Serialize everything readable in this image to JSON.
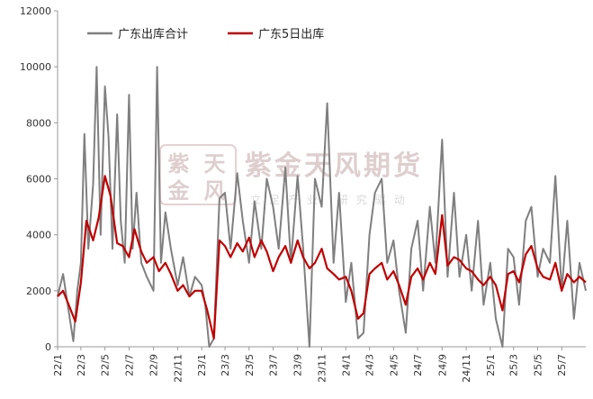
{
  "watermark": {
    "logo_chars": [
      "紫",
      "天",
      "金",
      "风"
    ],
    "name": "紫金天风期货",
    "slogan": "立足产业 研究驱动"
  },
  "chart_data": {
    "type": "line",
    "title": "",
    "xlabel": "",
    "ylabel": "",
    "ylim": [
      0,
      12000
    ],
    "yticks": [
      0,
      2000,
      4000,
      6000,
      8000,
      10000,
      12000
    ],
    "grid": false,
    "legend": {
      "placement": "top-left"
    },
    "x_start": "2022-01-01",
    "x_end": "2025-08-31",
    "xtick_labels": [
      "22/1",
      "22/3",
      "22/5",
      "22/7",
      "22/9",
      "22/11",
      "23/1",
      "23/3",
      "23/5",
      "23/7",
      "23/9",
      "23/11",
      "24/1",
      "24/3",
      "24/5",
      "24/7",
      "24/9",
      "24/11",
      "25/1",
      "25/3",
      "25/5",
      "25/7"
    ],
    "series": [
      {
        "name": "广东出库合计",
        "color": "#7f7f7f",
        "points": [
          [
            "2022-01-01",
            1800
          ],
          [
            "2022-01-15",
            2600
          ],
          [
            "2022-02-01",
            1000
          ],
          [
            "2022-02-10",
            200
          ],
          [
            "2022-02-20",
            2000
          ],
          [
            "2022-03-01",
            3000
          ],
          [
            "2022-03-10",
            7600
          ],
          [
            "2022-03-20",
            3500
          ],
          [
            "2022-04-01",
            5800
          ],
          [
            "2022-04-10",
            10000
          ],
          [
            "2022-04-20",
            4000
          ],
          [
            "2022-05-01",
            9300
          ],
          [
            "2022-05-10",
            7500
          ],
          [
            "2022-05-20",
            3500
          ],
          [
            "2022-06-01",
            8300
          ],
          [
            "2022-06-10",
            4500
          ],
          [
            "2022-06-20",
            3000
          ],
          [
            "2022-07-01",
            9000
          ],
          [
            "2022-07-10",
            3500
          ],
          [
            "2022-07-20",
            5500
          ],
          [
            "2022-08-01",
            3000
          ],
          [
            "2022-08-15",
            2500
          ],
          [
            "2022-09-01",
            2000
          ],
          [
            "2022-09-10",
            10000
          ],
          [
            "2022-09-20",
            3000
          ],
          [
            "2022-10-01",
            4800
          ],
          [
            "2022-10-15",
            3500
          ],
          [
            "2022-11-01",
            2200
          ],
          [
            "2022-11-15",
            3200
          ],
          [
            "2022-12-01",
            1800
          ],
          [
            "2022-12-15",
            2500
          ],
          [
            "2023-01-01",
            2200
          ],
          [
            "2023-01-10",
            1500
          ],
          [
            "2023-01-20",
            0
          ],
          [
            "2023-02-01",
            300
          ],
          [
            "2023-02-15",
            5300
          ],
          [
            "2023-03-01",
            5500
          ],
          [
            "2023-03-15",
            3500
          ],
          [
            "2023-04-01",
            6200
          ],
          [
            "2023-04-15",
            4500
          ],
          [
            "2023-05-01",
            3000
          ],
          [
            "2023-05-15",
            5200
          ],
          [
            "2023-06-01",
            3500
          ],
          [
            "2023-06-15",
            6000
          ],
          [
            "2023-07-01",
            5000
          ],
          [
            "2023-07-15",
            3500
          ],
          [
            "2023-08-01",
            6400
          ],
          [
            "2023-08-15",
            3000
          ],
          [
            "2023-09-01",
            6100
          ],
          [
            "2023-09-15",
            3500
          ],
          [
            "2023-10-01",
            0
          ],
          [
            "2023-10-15",
            6000
          ],
          [
            "2023-11-01",
            5000
          ],
          [
            "2023-11-15",
            8700
          ],
          [
            "2023-12-01",
            3000
          ],
          [
            "2023-12-15",
            5500
          ],
          [
            "2024-01-01",
            1600
          ],
          [
            "2024-01-15",
            3000
          ],
          [
            "2024-02-01",
            300
          ],
          [
            "2024-02-15",
            500
          ],
          [
            "2024-03-01",
            4000
          ],
          [
            "2024-03-15",
            5500
          ],
          [
            "2024-04-01",
            6000
          ],
          [
            "2024-04-15",
            3000
          ],
          [
            "2024-05-01",
            3800
          ],
          [
            "2024-05-15",
            2000
          ],
          [
            "2024-06-01",
            500
          ],
          [
            "2024-06-15",
            3500
          ],
          [
            "2024-07-01",
            4500
          ],
          [
            "2024-07-15",
            2000
          ],
          [
            "2024-08-01",
            5000
          ],
          [
            "2024-08-15",
            3000
          ],
          [
            "2024-09-01",
            7400
          ],
          [
            "2024-09-15",
            2500
          ],
          [
            "2024-10-01",
            5500
          ],
          [
            "2024-10-15",
            2500
          ],
          [
            "2024-11-01",
            4000
          ],
          [
            "2024-11-15",
            2000
          ],
          [
            "2024-12-01",
            4500
          ],
          [
            "2024-12-15",
            1500
          ],
          [
            "2025-01-01",
            3000
          ],
          [
            "2025-01-15",
            1000
          ],
          [
            "2025-02-01",
            0
          ],
          [
            "2025-02-15",
            3500
          ],
          [
            "2025-03-01",
            3200
          ],
          [
            "2025-03-15",
            1500
          ],
          [
            "2025-04-01",
            4500
          ],
          [
            "2025-04-15",
            5000
          ],
          [
            "2025-05-01",
            2500
          ],
          [
            "2025-05-15",
            3500
          ],
          [
            "2025-06-01",
            3000
          ],
          [
            "2025-06-15",
            6100
          ],
          [
            "2025-07-01",
            2000
          ],
          [
            "2025-07-15",
            4500
          ],
          [
            "2025-08-01",
            1000
          ],
          [
            "2025-08-15",
            3000
          ],
          [
            "2025-08-31",
            2000
          ]
        ]
      },
      {
        "name": "广东5日出库",
        "color": "#c00000",
        "points": [
          [
            "2022-01-01",
            1800
          ],
          [
            "2022-01-15",
            2000
          ],
          [
            "2022-02-01",
            1400
          ],
          [
            "2022-02-15",
            900
          ],
          [
            "2022-03-01",
            2300
          ],
          [
            "2022-03-15",
            4500
          ],
          [
            "2022-04-01",
            3800
          ],
          [
            "2022-04-15",
            4600
          ],
          [
            "2022-05-01",
            6100
          ],
          [
            "2022-05-15",
            5400
          ],
          [
            "2022-06-01",
            3700
          ],
          [
            "2022-06-15",
            3600
          ],
          [
            "2022-07-01",
            3200
          ],
          [
            "2022-07-15",
            4200
          ],
          [
            "2022-08-01",
            3400
          ],
          [
            "2022-08-15",
            3000
          ],
          [
            "2022-09-01",
            3200
          ],
          [
            "2022-09-15",
            2700
          ],
          [
            "2022-10-01",
            3000
          ],
          [
            "2022-10-15",
            2600
          ],
          [
            "2022-11-01",
            2000
          ],
          [
            "2022-11-15",
            2200
          ],
          [
            "2022-12-01",
            1800
          ],
          [
            "2022-12-15",
            2000
          ],
          [
            "2023-01-01",
            2000
          ],
          [
            "2023-01-15",
            1300
          ],
          [
            "2023-02-01",
            300
          ],
          [
            "2023-02-15",
            3800
          ],
          [
            "2023-03-01",
            3600
          ],
          [
            "2023-03-15",
            3200
          ],
          [
            "2023-04-01",
            3700
          ],
          [
            "2023-04-15",
            3400
          ],
          [
            "2023-05-01",
            3900
          ],
          [
            "2023-05-15",
            3200
          ],
          [
            "2023-06-01",
            3800
          ],
          [
            "2023-06-15",
            3400
          ],
          [
            "2023-07-01",
            2700
          ],
          [
            "2023-07-15",
            3200
          ],
          [
            "2023-08-01",
            3600
          ],
          [
            "2023-08-15",
            3000
          ],
          [
            "2023-09-01",
            3800
          ],
          [
            "2023-09-15",
            3200
          ],
          [
            "2023-10-01",
            2800
          ],
          [
            "2023-10-15",
            3000
          ],
          [
            "2023-11-01",
            3500
          ],
          [
            "2023-11-15",
            2800
          ],
          [
            "2023-12-01",
            2600
          ],
          [
            "2023-12-15",
            2400
          ],
          [
            "2024-01-01",
            2500
          ],
          [
            "2024-01-15",
            2000
          ],
          [
            "2024-02-01",
            1000
          ],
          [
            "2024-02-15",
            1200
          ],
          [
            "2024-03-01",
            2600
          ],
          [
            "2024-03-15",
            2800
          ],
          [
            "2024-04-01",
            3000
          ],
          [
            "2024-04-15",
            2400
          ],
          [
            "2024-05-01",
            2700
          ],
          [
            "2024-05-15",
            2200
          ],
          [
            "2024-06-01",
            1500
          ],
          [
            "2024-06-15",
            2500
          ],
          [
            "2024-07-01",
            2800
          ],
          [
            "2024-07-15",
            2400
          ],
          [
            "2024-08-01",
            3000
          ],
          [
            "2024-08-15",
            2600
          ],
          [
            "2024-09-01",
            4700
          ],
          [
            "2024-09-15",
            2900
          ],
          [
            "2024-10-01",
            3200
          ],
          [
            "2024-10-15",
            3100
          ],
          [
            "2024-11-01",
            2800
          ],
          [
            "2024-11-15",
            2700
          ],
          [
            "2024-12-01",
            2400
          ],
          [
            "2024-12-15",
            2200
          ],
          [
            "2025-01-01",
            2500
          ],
          [
            "2025-01-15",
            2200
          ],
          [
            "2025-02-01",
            1300
          ],
          [
            "2025-02-15",
            2600
          ],
          [
            "2025-03-01",
            2700
          ],
          [
            "2025-03-15",
            2300
          ],
          [
            "2025-04-01",
            3300
          ],
          [
            "2025-04-15",
            3600
          ],
          [
            "2025-05-01",
            2800
          ],
          [
            "2025-05-15",
            2500
          ],
          [
            "2025-06-01",
            2400
          ],
          [
            "2025-06-15",
            3000
          ],
          [
            "2025-07-01",
            2000
          ],
          [
            "2025-07-15",
            2600
          ],
          [
            "2025-08-01",
            2300
          ],
          [
            "2025-08-15",
            2500
          ],
          [
            "2025-08-31",
            2300
          ]
        ]
      }
    ]
  }
}
